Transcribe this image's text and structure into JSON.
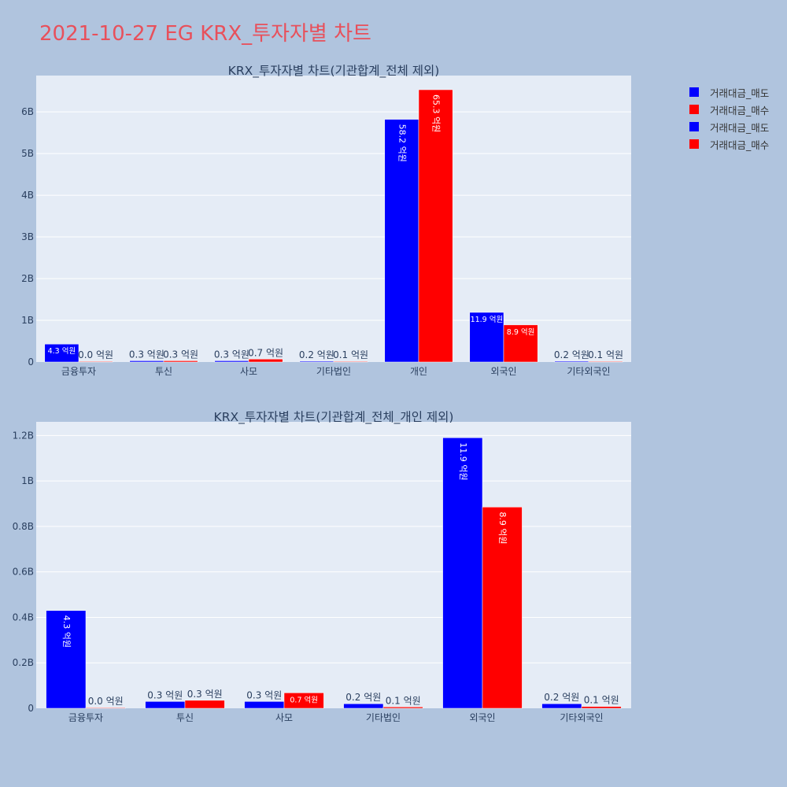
{
  "page_title": "2021-10-27 EG KRX_투자자별 차트",
  "legend": [
    {
      "label": "거래대금_매도",
      "color": "#0000ff"
    },
    {
      "label": "거래대금_매수",
      "color": "#ff0000"
    },
    {
      "label": "거래대금_매도",
      "color": "#0000ff"
    },
    {
      "label": "거래대금_매수",
      "color": "#ff0000"
    }
  ],
  "chart_data": [
    {
      "type": "bar",
      "title": "KRX_투자자별 차트(기관합계_전체 제외)",
      "categories": [
        "금융투자",
        "투신",
        "사모",
        "기타법인",
        "개인",
        "외국인",
        "기타외국인"
      ],
      "series": [
        {
          "name": "거래대금_매도",
          "color": "#0000ff",
          "values": [
            430000000,
            30000000,
            30000000,
            20000000,
            5820000000,
            1190000000,
            20000000
          ],
          "labels": [
            "4.3 억원",
            "0.3 억원",
            "0.3 억원",
            "0.2 억원",
            "58.2 억원",
            "11.9 억원",
            "0.2 억원"
          ]
        },
        {
          "name": "거래대금_매수",
          "color": "#ff0000",
          "values": [
            2000000,
            30000000,
            70000000,
            10000000,
            6530000000,
            890000000,
            10000000
          ],
          "labels": [
            "0.0 억원",
            "0.3 억원",
            "0.7 억원",
            "0.1 억원",
            "65.3 억원",
            "8.9 억원",
            "0.1 억원"
          ]
        }
      ],
      "ylim": [
        0,
        6870000000
      ],
      "yticks": [
        0,
        1000000000,
        2000000000,
        3000000000,
        4000000000,
        5000000000,
        6000000000
      ],
      "ytick_labels": [
        "0",
        "1B",
        "2B",
        "3B",
        "4B",
        "5B",
        "6B"
      ],
      "grid": true
    },
    {
      "type": "bar",
      "title": "KRX_투자자별 차트(기관합계_전체_개인 제외)",
      "categories": [
        "금융투자",
        "투신",
        "사모",
        "기타법인",
        "외국인",
        "기타외국인"
      ],
      "series": [
        {
          "name": "거래대금_매도",
          "color": "#0000ff",
          "values": [
            430000000,
            30000000,
            30000000,
            20000000,
            1190000000,
            20000000
          ],
          "labels": [
            "4.3 억원",
            "0.3 억원",
            "0.3 억원",
            "0.2 억원",
            "11.9 억원",
            "0.2 억원"
          ]
        },
        {
          "name": "거래대금_매수",
          "color": "#ff0000",
          "values": [
            2000000,
            35000000,
            68000000,
            6000000,
            885000000,
            8000000
          ],
          "labels": [
            "0.0 억원",
            "0.3 억원",
            "0.7 억원",
            "0.1 억원",
            "8.9 억원",
            "0.1 억원"
          ]
        }
      ],
      "ylim": [
        0,
        1260000000
      ],
      "yticks": [
        0,
        200000000,
        400000000,
        600000000,
        800000000,
        1000000000,
        1200000000
      ],
      "ytick_labels": [
        "0",
        "0.2B",
        "0.4B",
        "0.6B",
        "0.8B",
        "1B",
        "1.2B"
      ],
      "grid": true
    }
  ]
}
